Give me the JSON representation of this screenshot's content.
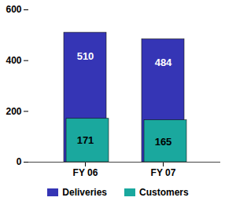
{
  "chart_data": {
    "type": "bar",
    "categories": [
      "FY 06",
      "FY 07"
    ],
    "series": [
      {
        "name": "Deliveries",
        "color": "#3535b5",
        "values": [
          510,
          484
        ]
      },
      {
        "name": "Customers",
        "color": "#1aa89e",
        "values": [
          171,
          165
        ]
      }
    ],
    "stacked": false,
    "ylim": [
      0,
      600
    ],
    "yticks": [
      0,
      200,
      400,
      600
    ],
    "grid": false,
    "data_labels": true,
    "legend": "bottom"
  }
}
